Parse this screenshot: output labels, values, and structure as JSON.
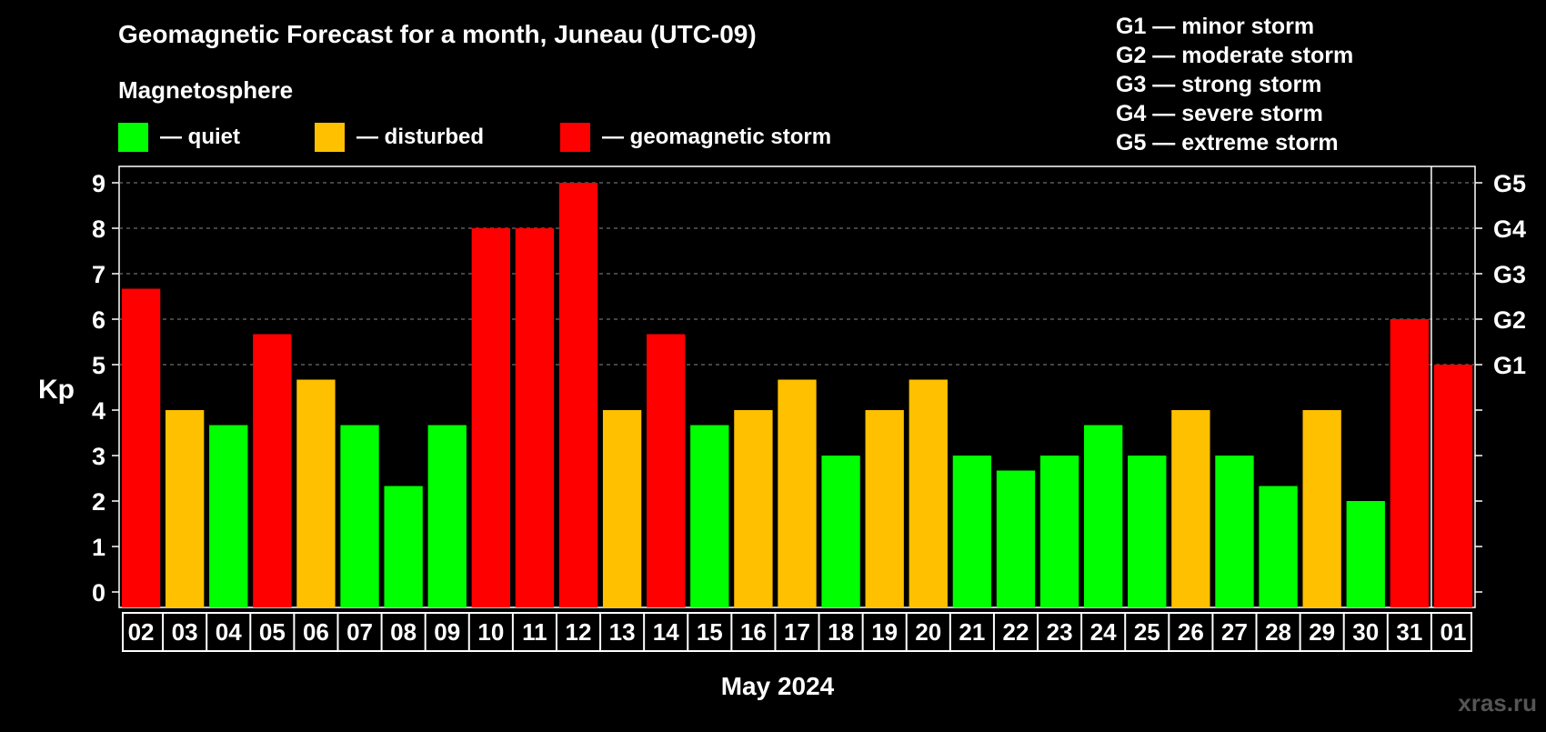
{
  "colors": {
    "quiet": "#00ff00",
    "disturbed": "#ffc000",
    "storm": "#ff0000",
    "background": "#000000",
    "grid": "#888888"
  },
  "watermark": "xras.ru",
  "chart_data": {
    "type": "bar",
    "title": "Geomagnetic Forecast for a month, Juneau (UTC-09)",
    "subtitle": "Magnetosphere",
    "ylabel": "Kp",
    "xlabel": "May 2024",
    "ylim": [
      0,
      9
    ],
    "yticks": [
      "0",
      "1",
      "2",
      "3",
      "4",
      "5",
      "6",
      "7",
      "8",
      "9"
    ],
    "g_scale": [
      {
        "level": 5,
        "label": "G1"
      },
      {
        "level": 6,
        "label": "G2"
      },
      {
        "level": 7,
        "label": "G3"
      },
      {
        "level": 8,
        "label": "G4"
      },
      {
        "level": 9,
        "label": "G5"
      }
    ],
    "legend": [
      {
        "status": "quiet",
        "label": "— quiet"
      },
      {
        "status": "disturbed",
        "label": "— disturbed"
      },
      {
        "status": "storm",
        "label": "— geomagnetic storm"
      }
    ],
    "g_legend": [
      "G1 — minor storm",
      "G2 — moderate storm",
      "G3 — strong storm",
      "G4 — severe storm",
      "G5 — extreme storm"
    ],
    "categories": [
      "02",
      "03",
      "04",
      "05",
      "06",
      "07",
      "08",
      "09",
      "10",
      "11",
      "12",
      "13",
      "14",
      "15",
      "16",
      "17",
      "18",
      "19",
      "20",
      "21",
      "22",
      "23",
      "24",
      "25",
      "26",
      "27",
      "28",
      "29",
      "30",
      "31",
      "01"
    ],
    "values": [
      6.67,
      4,
      3.67,
      5.67,
      4.67,
      3.67,
      2.33,
      3.67,
      8,
      8,
      9,
      4,
      5.67,
      3.67,
      4,
      4.67,
      3,
      4,
      4.67,
      3,
      2.67,
      3,
      3.67,
      3,
      4,
      3,
      2.33,
      4,
      2,
      6,
      5
    ],
    "status": [
      "storm",
      "disturbed",
      "quiet",
      "storm",
      "disturbed",
      "quiet",
      "quiet",
      "quiet",
      "storm",
      "storm",
      "storm",
      "disturbed",
      "storm",
      "quiet",
      "disturbed",
      "disturbed",
      "quiet",
      "disturbed",
      "disturbed",
      "quiet",
      "quiet",
      "quiet",
      "quiet",
      "quiet",
      "disturbed",
      "quiet",
      "quiet",
      "disturbed",
      "quiet",
      "storm",
      "storm"
    ],
    "month_separator_after": "31"
  }
}
